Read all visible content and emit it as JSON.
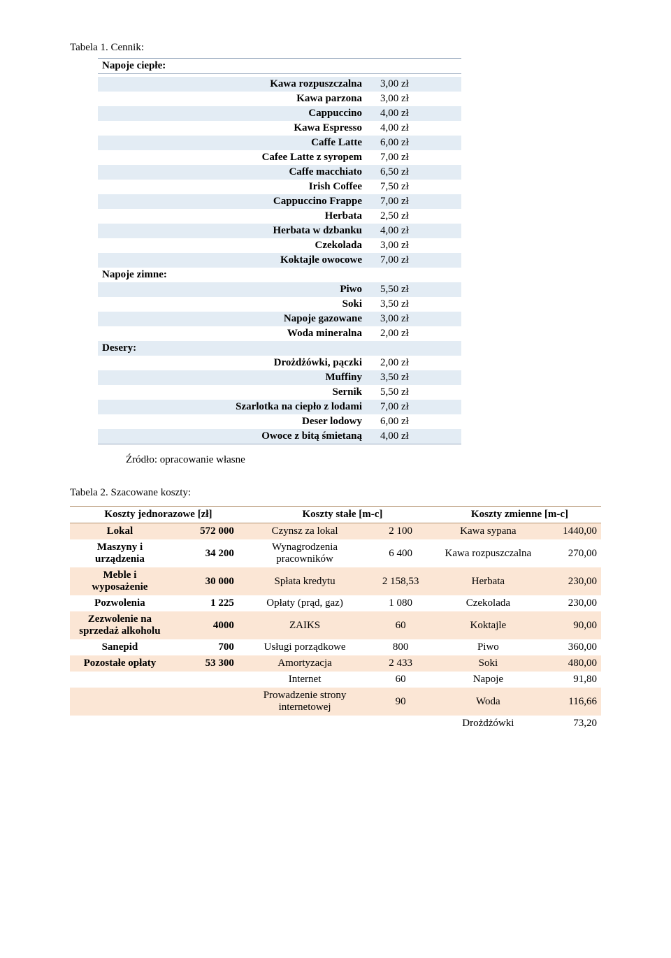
{
  "colors": {
    "menu_row_bg": "#e3ecf4",
    "menu_border": "#9aaabf",
    "cost_row_bg": "#fbe6d5",
    "cost_border": "#b28f6c",
    "text": "#000000",
    "page_bg": "#ffffff"
  },
  "font": {
    "family": "Times New Roman",
    "base_size_pt": 11
  },
  "table1": {
    "caption": "Tabela 1. Cennik:",
    "sections": [
      {
        "title": "Napoje ciepłe:",
        "items": [
          {
            "name": "Kawa rozpuszczalna",
            "price": "3,00 zł"
          },
          {
            "name": "Kawa parzona",
            "price": "3,00 zł"
          },
          {
            "name": "Cappuccino",
            "price": "4,00 zł"
          },
          {
            "name": "Kawa Espresso",
            "price": "4,00 zł"
          },
          {
            "name": "Caffe Latte",
            "price": "6,00 zł"
          },
          {
            "name": "Cafee Latte z syropem",
            "price": "7,00 zł"
          },
          {
            "name": "Caffe macchiato",
            "price": "6,50 zł"
          },
          {
            "name": "Irish Coffee",
            "price": "7,50 zł"
          },
          {
            "name": "Cappuccino Frappe",
            "price": "7,00 zł"
          },
          {
            "name": "Herbata",
            "price": "2,50 zł"
          },
          {
            "name": "Herbata w dzbanku",
            "price": "4,00 zł"
          },
          {
            "name": "Czekolada",
            "price": "3,00 zł"
          },
          {
            "name": "Koktajle owocowe",
            "price": "7,00 zł"
          }
        ]
      },
      {
        "title": "Napoje zimne:",
        "items": [
          {
            "name": "Piwo",
            "price": "5,50 zł"
          },
          {
            "name": "Soki",
            "price": "3,50 zł"
          },
          {
            "name": "Napoje gazowane",
            "price": "3,00 zł"
          },
          {
            "name": "Woda mineralna",
            "price": "2,00 zł"
          }
        ]
      },
      {
        "title": "Desery:",
        "items": [
          {
            "name": "Drożdżówki, pączki",
            "price": "2,00 zł"
          },
          {
            "name": "Muffiny",
            "price": "3,50 zł"
          },
          {
            "name": "Sernik",
            "price": "5,50 zł"
          },
          {
            "name": "Szarlotka na ciepło z lodami",
            "price": "7,00 zł"
          },
          {
            "name": "Deser lodowy",
            "price": "6,00 zł"
          },
          {
            "name": "Owoce z bitą śmietaną",
            "price": "4,00 zł"
          }
        ]
      }
    ],
    "source": "Źródło: opracowanie własne"
  },
  "table2": {
    "caption": "Tabela 2. Szacowane koszty:",
    "headers": [
      "Koszty jednorazowe [zł]",
      "Koszty stałe [m-c]",
      "Koszty zmienne [m-c]"
    ],
    "rows": [
      {
        "a_label": "Lokal",
        "a_val": "572 000",
        "b_label": "Czynsz za lokal",
        "b_val": "2 100",
        "c_label": "Kawa sypana",
        "c_val": "1440,00"
      },
      {
        "a_label": "Maszyny i urządzenia",
        "a_val": "34 200",
        "b_label": "Wynagrodzenia pracowników",
        "b_val": "6 400",
        "c_label": "Kawa rozpuszczalna",
        "c_val": "270,00"
      },
      {
        "a_label": "Meble i wyposażenie",
        "a_val": "30 000",
        "b_label": "Spłata kredytu",
        "b_val": "2 158,53",
        "c_label": "Herbata",
        "c_val": "230,00"
      },
      {
        "a_label": "Pozwolenia",
        "a_val": "1 225",
        "b_label": "Opłaty (prąd, gaz)",
        "b_val": "1 080",
        "c_label": "Czekolada",
        "c_val": "230,00"
      },
      {
        "a_label": "Zezwolenie na sprzedaż alkoholu",
        "a_val": "4000",
        "b_label": "ZAIKS",
        "b_val": "60",
        "c_label": "Koktajle",
        "c_val": "90,00"
      },
      {
        "a_label": "Sanepid",
        "a_val": "700",
        "b_label": "Usługi porządkowe",
        "b_val": "800",
        "c_label": "Piwo",
        "c_val": "360,00"
      },
      {
        "a_label": "Pozostałe opłaty",
        "a_val": "53 300",
        "b_label": "Amortyzacja",
        "b_val": "2 433",
        "c_label": "Soki",
        "c_val": "480,00"
      },
      {
        "a_label": "",
        "a_val": "",
        "b_label": "Internet",
        "b_val": "60",
        "c_label": "Napoje",
        "c_val": "91,80"
      },
      {
        "a_label": "",
        "a_val": "",
        "b_label": "Prowadzenie strony internetowej",
        "b_val": "90",
        "c_label": "Woda",
        "c_val": "116,66"
      },
      {
        "a_label": "",
        "a_val": "",
        "b_label": "",
        "b_val": "",
        "c_label": "Drożdżówki",
        "c_val": "73,20"
      }
    ]
  }
}
